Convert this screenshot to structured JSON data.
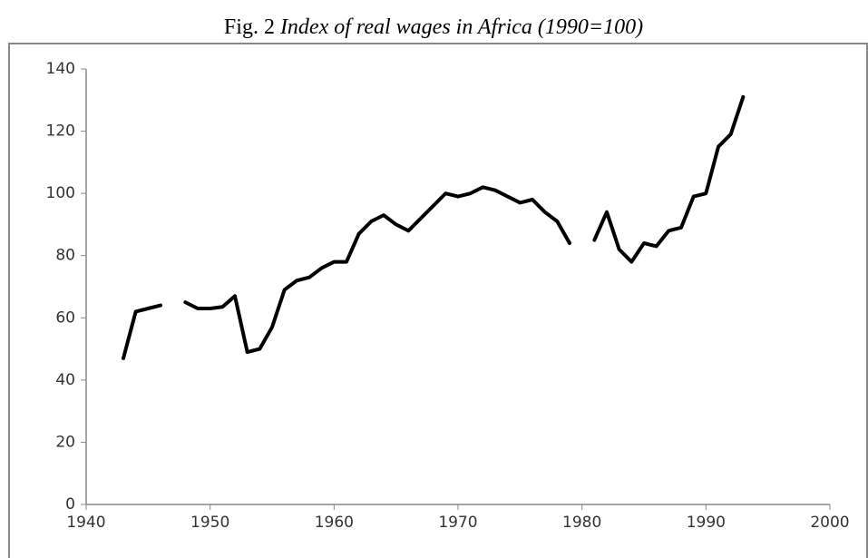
{
  "chart_data": {
    "type": "line",
    "title_prefix": "Fig. 2",
    "title": "Index of real wages in Africa (1990=100)",
    "x": [
      1943,
      1944,
      1945,
      1946,
      1947,
      1948,
      1949,
      1950,
      1951,
      1952,
      1953,
      1954,
      1955,
      1956,
      1957,
      1958,
      1959,
      1960,
      1961,
      1962,
      1963,
      1964,
      1965,
      1966,
      1967,
      1968,
      1969,
      1970,
      1971,
      1972,
      1973,
      1974,
      1975,
      1976,
      1977,
      1978,
      1979,
      1980,
      1981,
      1982,
      1983,
      1984,
      1985,
      1986,
      1987,
      1988,
      1989,
      1990,
      1991,
      1992,
      1993
    ],
    "series": [
      {
        "color": "#000000",
        "values": [
          47,
          62,
          63,
          64,
          null,
          65,
          63,
          63,
          63.5,
          67,
          49,
          50,
          57,
          69,
          72,
          73,
          76,
          78,
          78,
          87,
          91,
          93,
          90,
          88,
          92,
          96,
          100,
          99,
          100,
          102,
          101,
          99,
          97,
          98,
          94,
          91,
          84,
          null,
          85,
          94,
          82,
          78,
          84,
          83,
          88,
          89,
          99,
          100,
          115,
          119,
          131
        ]
      }
    ],
    "xlim": [
      1940,
      2000
    ],
    "xticks": [
      1940,
      1950,
      1960,
      1970,
      1980,
      1990,
      2000
    ],
    "ylim": [
      0,
      140
    ],
    "yticks": [
      0,
      20,
      40,
      60,
      80,
      100,
      120,
      140
    ],
    "grid": false
  }
}
